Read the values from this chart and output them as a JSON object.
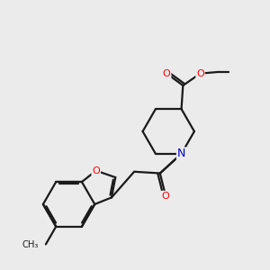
{
  "bg_color": "#ebebeb",
  "bond_color": "#1a1a1a",
  "O_color": "#ff0000",
  "N_color": "#0000cc",
  "lw": 1.6,
  "dbo": 0.055,
  "figsize": [
    3.0,
    3.0
  ],
  "dpi": 100,
  "xlim": [
    0.0,
    8.5
  ],
  "ylim": [
    0.0,
    8.5
  ]
}
